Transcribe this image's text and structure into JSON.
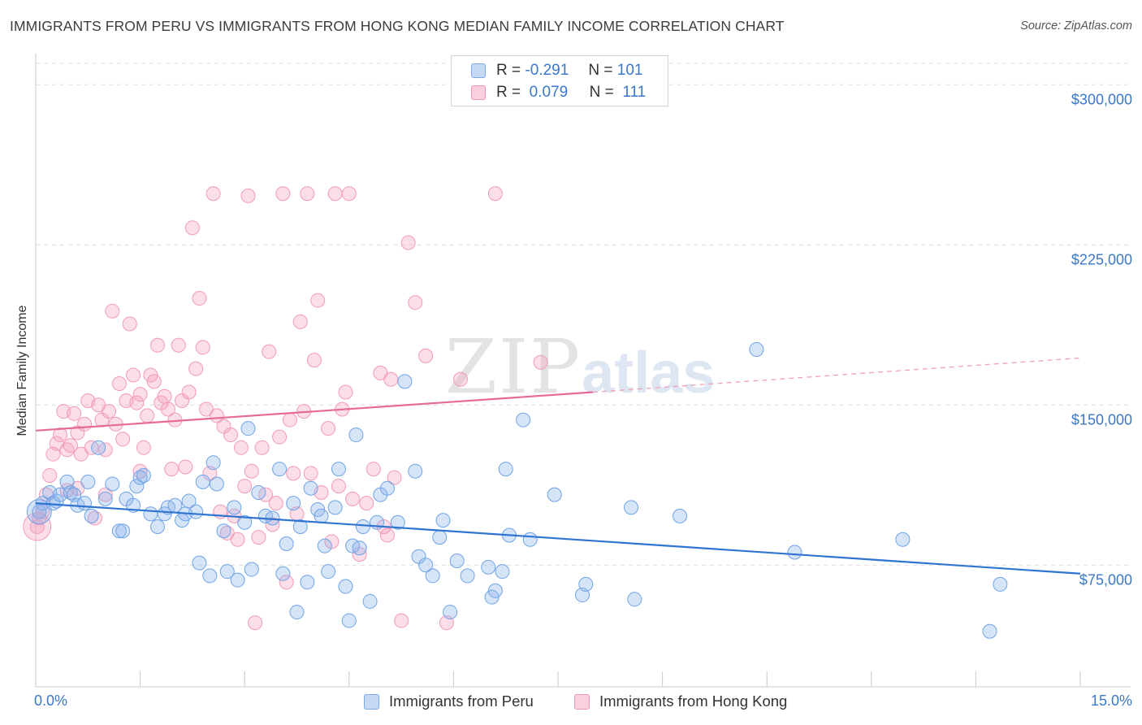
{
  "title": "IMMIGRANTS FROM PERU VS IMMIGRANTS FROM HONG KONG MEDIAN FAMILY INCOME CORRELATION CHART",
  "source": "Source: ZipAtlas.com",
  "watermark": {
    "zip": "ZIP",
    "atlas": "atlas"
  },
  "legend": {
    "r_label": "R =",
    "n_label": "N =",
    "rows": [
      {
        "name": "Immigrants from Peru",
        "r": "-0.291",
        "n": "101",
        "color": "#6fa4e6"
      },
      {
        "name": "Immigrants from Hong Kong",
        "r": "0.079",
        "n": "111",
        "color": "#f08aaa"
      }
    ]
  },
  "chart_data": {
    "type": "scatter",
    "title": "IMMIGRANTS FROM PERU VS IMMIGRANTS FROM HONG KONG MEDIAN FAMILY INCOME CORRELATION CHART",
    "xlabel": "",
    "ylabel": "Median Family Income",
    "xlim": [
      0,
      15
    ],
    "ylim": [
      18000,
      310000
    ],
    "x_tick_labels": [
      "0.0%",
      "15.0%"
    ],
    "y_ticks": [
      {
        "value": 75000,
        "label": "$75,000"
      },
      {
        "value": 150000,
        "label": "$150,000"
      },
      {
        "value": 225000,
        "label": "$225,000"
      },
      {
        "value": 300000,
        "label": "$300,000"
      }
    ],
    "grid": "horizontal dashed",
    "legend_position": "top-center and bottom",
    "series": [
      {
        "name": "Immigrants from Peru",
        "color": "#6fa4e6",
        "trend": {
          "x0": 0.0,
          "y0": 104000,
          "x1": 15.0,
          "y1": 71000
        },
        "points": [
          [
            0.05,
            100000
          ],
          [
            0.1,
            104000
          ],
          [
            0.2,
            109000
          ],
          [
            0.25,
            104000
          ],
          [
            0.3,
            105000
          ],
          [
            0.35,
            108000
          ],
          [
            0.45,
            114000
          ],
          [
            0.5,
            109000
          ],
          [
            0.55,
            108000
          ],
          [
            0.6,
            103000
          ],
          [
            0.7,
            104000
          ],
          [
            0.75,
            114000
          ],
          [
            0.8,
            98000
          ],
          [
            0.9,
            130000
          ],
          [
            1.0,
            106000
          ],
          [
            1.1,
            113000
          ],
          [
            1.2,
            91000
          ],
          [
            1.25,
            91000
          ],
          [
            1.3,
            106000
          ],
          [
            1.4,
            103000
          ],
          [
            1.45,
            112000
          ],
          [
            1.5,
            116000
          ],
          [
            1.55,
            117000
          ],
          [
            1.65,
            99000
          ],
          [
            1.75,
            93000
          ],
          [
            1.85,
            99000
          ],
          [
            1.9,
            102000
          ],
          [
            2.0,
            103000
          ],
          [
            2.1,
            96000
          ],
          [
            2.15,
            99000
          ],
          [
            2.2,
            105000
          ],
          [
            2.3,
            100000
          ],
          [
            2.35,
            76000
          ],
          [
            2.4,
            114000
          ],
          [
            2.5,
            70000
          ],
          [
            2.55,
            123000
          ],
          [
            2.6,
            113000
          ],
          [
            2.7,
            91000
          ],
          [
            2.75,
            72000
          ],
          [
            2.85,
            102000
          ],
          [
            2.9,
            68000
          ],
          [
            3.0,
            95000
          ],
          [
            3.05,
            139000
          ],
          [
            3.1,
            73000
          ],
          [
            3.2,
            109000
          ],
          [
            3.3,
            98000
          ],
          [
            3.4,
            97000
          ],
          [
            3.5,
            120000
          ],
          [
            3.55,
            71000
          ],
          [
            3.6,
            85000
          ],
          [
            3.7,
            104000
          ],
          [
            3.75,
            53000
          ],
          [
            3.8,
            93000
          ],
          [
            3.9,
            67000
          ],
          [
            3.95,
            111000
          ],
          [
            4.05,
            101000
          ],
          [
            4.1,
            98000
          ],
          [
            4.15,
            84000
          ],
          [
            4.2,
            72000
          ],
          [
            4.3,
            102000
          ],
          [
            4.35,
            120000
          ],
          [
            4.45,
            65000
          ],
          [
            4.5,
            49000
          ],
          [
            4.55,
            84000
          ],
          [
            4.6,
            136000
          ],
          [
            4.65,
            83000
          ],
          [
            4.7,
            93000
          ],
          [
            4.8,
            58000
          ],
          [
            4.9,
            95000
          ],
          [
            4.95,
            108000
          ],
          [
            5.05,
            111000
          ],
          [
            5.2,
            95000
          ],
          [
            5.3,
            161000
          ],
          [
            5.45,
            119000
          ],
          [
            5.5,
            79000
          ],
          [
            5.6,
            75000
          ],
          [
            5.7,
            70000
          ],
          [
            5.8,
            88000
          ],
          [
            5.85,
            96000
          ],
          [
            5.95,
            53000
          ],
          [
            6.05,
            77000
          ],
          [
            6.2,
            70000
          ],
          [
            6.5,
            74000
          ],
          [
            6.55,
            60000
          ],
          [
            6.6,
            63000
          ],
          [
            6.7,
            72000
          ],
          [
            6.75,
            120000
          ],
          [
            6.8,
            89000
          ],
          [
            7.0,
            143000
          ],
          [
            7.1,
            87000
          ],
          [
            7.45,
            108000
          ],
          [
            7.85,
            61000
          ],
          [
            7.9,
            66000
          ],
          [
            8.55,
            102000
          ],
          [
            8.6,
            59000
          ],
          [
            9.25,
            98000
          ],
          [
            10.35,
            176000
          ],
          [
            10.9,
            81000
          ],
          [
            12.45,
            87000
          ],
          [
            13.7,
            44000
          ],
          [
            13.85,
            66000
          ]
        ]
      },
      {
        "name": "Immigrants from Hong Kong",
        "color": "#f08aaa",
        "trend": {
          "x0": 0.0,
          "y0": 138000,
          "x1": 8.0,
          "y1": 156000,
          "dashed_to_x": 15.0,
          "dashed_to_y": 172000
        },
        "points": [
          [
            0.02,
            93000
          ],
          [
            0.05,
            97000
          ],
          [
            0.1,
            100000
          ],
          [
            0.15,
            108000
          ],
          [
            0.2,
            117000
          ],
          [
            0.25,
            127000
          ],
          [
            0.3,
            132000
          ],
          [
            0.35,
            136000
          ],
          [
            0.4,
            147000
          ],
          [
            0.45,
            129000
          ],
          [
            0.5,
            131000
          ],
          [
            0.55,
            146000
          ],
          [
            0.6,
            137000
          ],
          [
            0.65,
            127000
          ],
          [
            0.7,
            141000
          ],
          [
            0.75,
            152000
          ],
          [
            0.8,
            130000
          ],
          [
            0.85,
            97000
          ],
          [
            0.9,
            150000
          ],
          [
            0.95,
            143000
          ],
          [
            1.0,
            129000
          ],
          [
            1.05,
            147000
          ],
          [
            1.1,
            194000
          ],
          [
            1.15,
            141000
          ],
          [
            1.2,
            160000
          ],
          [
            1.25,
            134000
          ],
          [
            1.3,
            152000
          ],
          [
            1.35,
            188000
          ],
          [
            1.4,
            164000
          ],
          [
            1.45,
            151000
          ],
          [
            1.5,
            155000
          ],
          [
            1.55,
            130000
          ],
          [
            1.6,
            145000
          ],
          [
            1.65,
            164000
          ],
          [
            1.7,
            161000
          ],
          [
            1.75,
            178000
          ],
          [
            1.8,
            151000
          ],
          [
            1.85,
            154000
          ],
          [
            1.9,
            148000
          ],
          [
            1.95,
            120000
          ],
          [
            2.0,
            143000
          ],
          [
            2.05,
            178000
          ],
          [
            2.1,
            152000
          ],
          [
            2.15,
            121000
          ],
          [
            2.2,
            156000
          ],
          [
            2.25,
            233000
          ],
          [
            2.3,
            167000
          ],
          [
            2.35,
            200000
          ],
          [
            2.4,
            177000
          ],
          [
            2.45,
            148000
          ],
          [
            2.5,
            118000
          ],
          [
            2.55,
            249000
          ],
          [
            2.6,
            145000
          ],
          [
            2.65,
            100000
          ],
          [
            2.7,
            140000
          ],
          [
            2.75,
            90000
          ],
          [
            2.8,
            136000
          ],
          [
            2.85,
            98000
          ],
          [
            2.9,
            87000
          ],
          [
            2.95,
            130000
          ],
          [
            3.0,
            112000
          ],
          [
            3.05,
            248000
          ],
          [
            3.1,
            119000
          ],
          [
            3.15,
            48000
          ],
          [
            3.2,
            88000
          ],
          [
            3.25,
            130000
          ],
          [
            3.3,
            108000
          ],
          [
            3.35,
            175000
          ],
          [
            3.4,
            94000
          ],
          [
            3.45,
            104000
          ],
          [
            3.5,
            135000
          ],
          [
            3.55,
            249000
          ],
          [
            3.6,
            67000
          ],
          [
            3.65,
            143000
          ],
          [
            3.7,
            118000
          ],
          [
            3.75,
            99000
          ],
          [
            3.8,
            189000
          ],
          [
            3.85,
            147000
          ],
          [
            3.9,
            249000
          ],
          [
            3.95,
            118000
          ],
          [
            4.0,
            171000
          ],
          [
            4.05,
            199000
          ],
          [
            4.1,
            109000
          ],
          [
            4.2,
            139000
          ],
          [
            4.25,
            86000
          ],
          [
            4.3,
            249000
          ],
          [
            4.35,
            112000
          ],
          [
            4.4,
            148000
          ],
          [
            4.45,
            156000
          ],
          [
            4.5,
            249000
          ],
          [
            4.55,
            106000
          ],
          [
            4.65,
            80000
          ],
          [
            4.75,
            104000
          ],
          [
            4.85,
            120000
          ],
          [
            4.95,
            165000
          ],
          [
            5.0,
            93000
          ],
          [
            5.05,
            89000
          ],
          [
            5.1,
            162000
          ],
          [
            5.15,
            116000
          ],
          [
            5.25,
            49000
          ],
          [
            5.35,
            226000
          ],
          [
            5.45,
            198000
          ],
          [
            5.6,
            173000
          ],
          [
            5.9,
            48000
          ],
          [
            6.1,
            162000
          ],
          [
            6.6,
            249000
          ],
          [
            7.25,
            170000
          ],
          [
            0.45,
            110000
          ],
          [
            0.6,
            111000
          ],
          [
            1.0,
            108000
          ],
          [
            1.5,
            119000
          ]
        ]
      }
    ]
  }
}
